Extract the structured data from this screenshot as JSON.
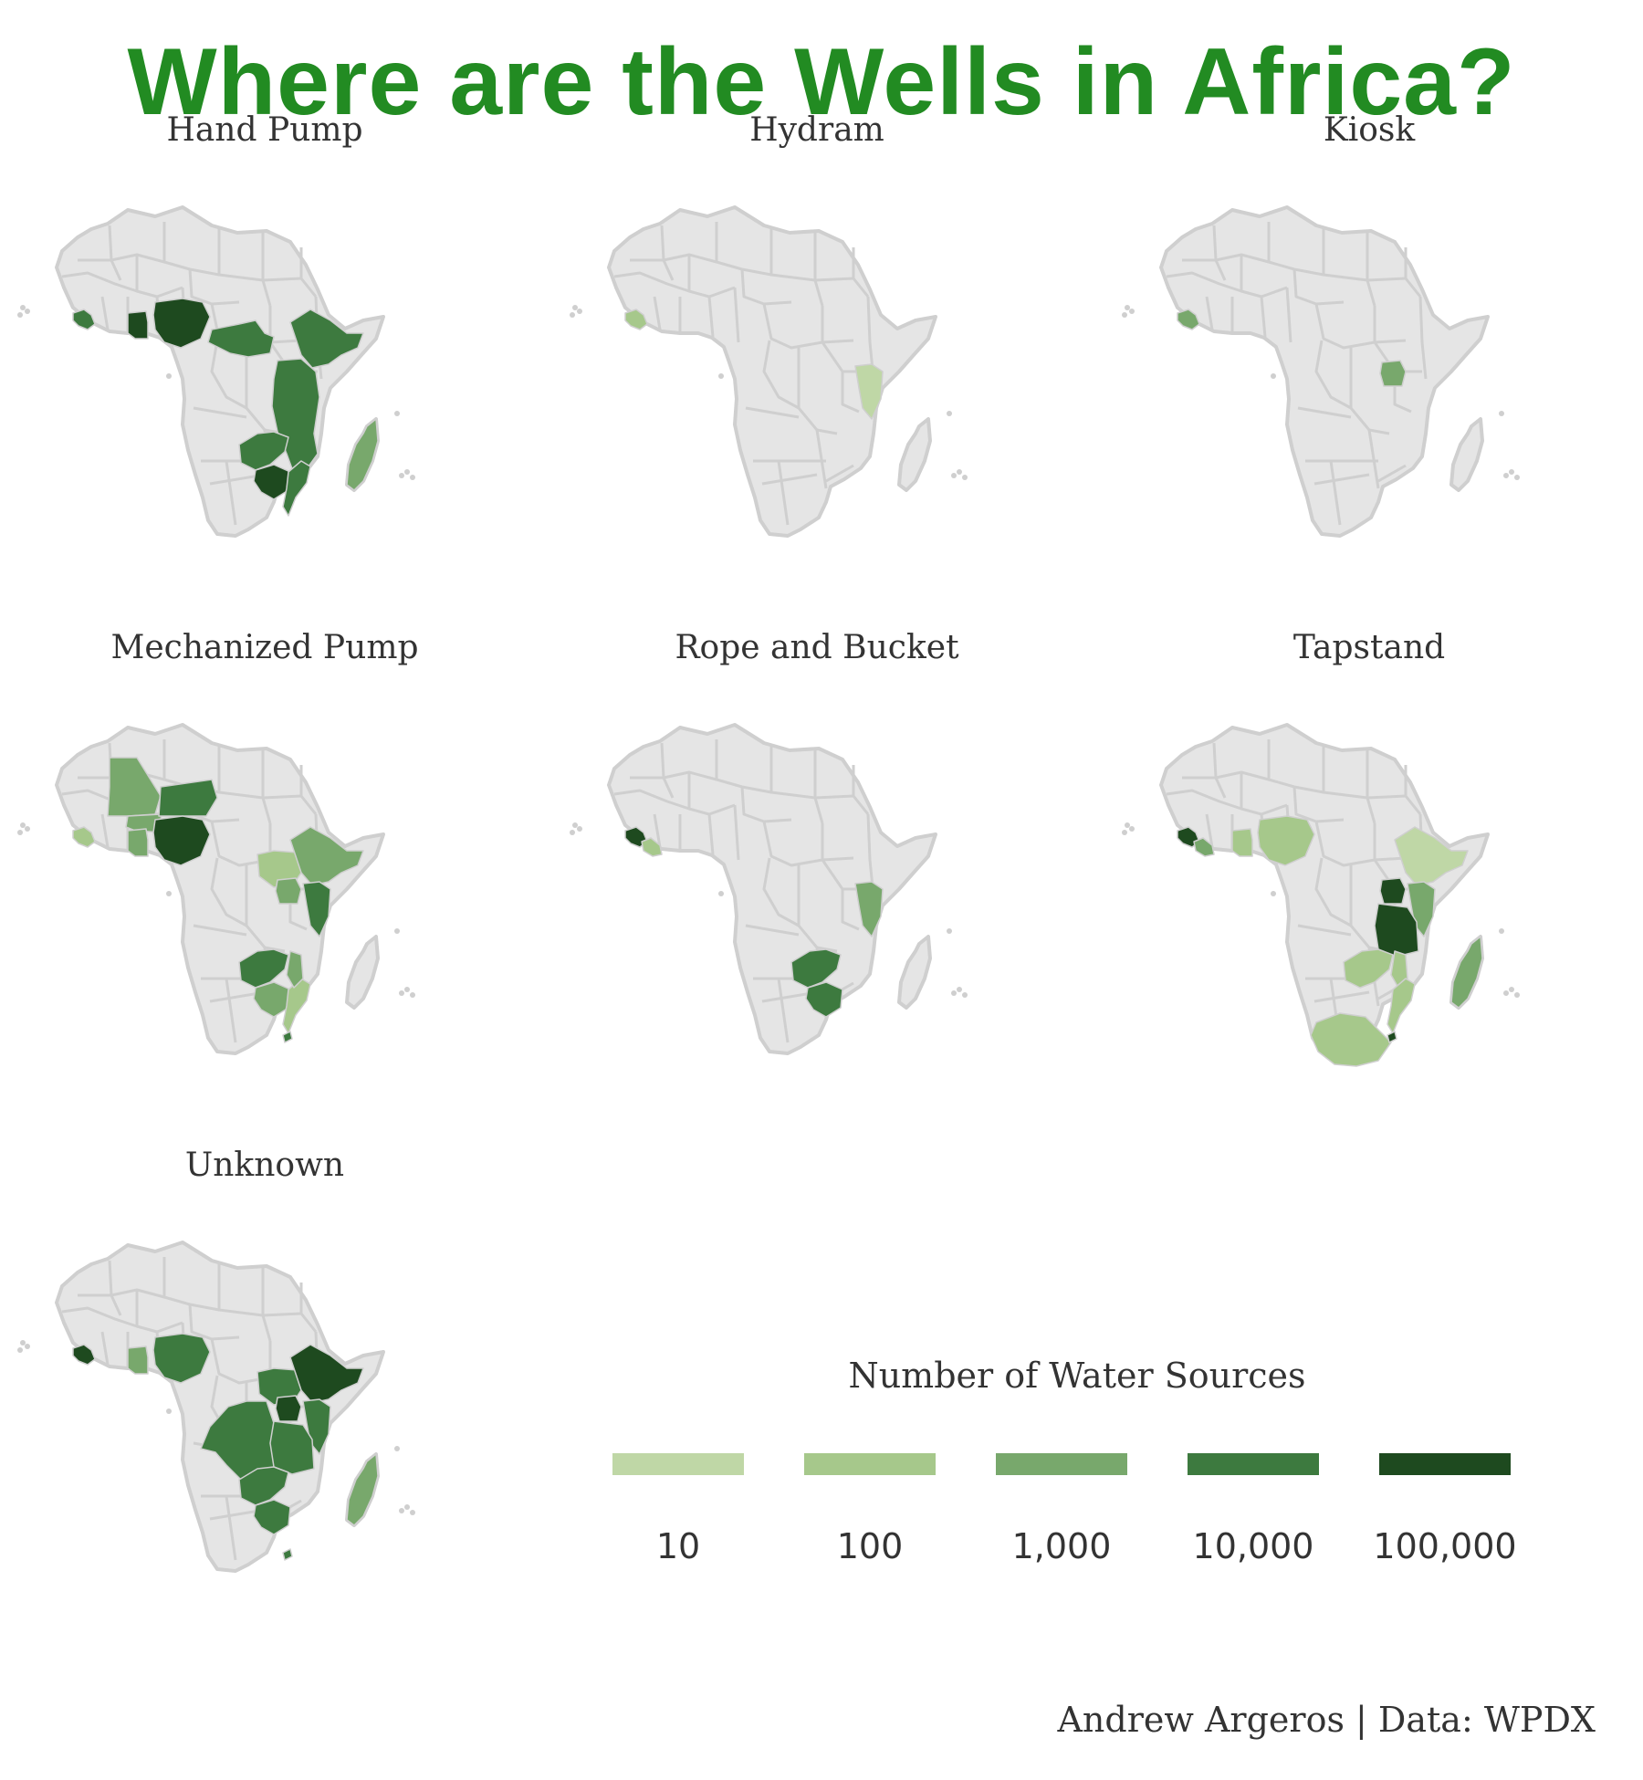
{
  "title": "Where are the Wells in Africa?",
  "panels": [
    {
      "label": "Hand Pump",
      "regions": [
        {
          "name": "Sierra Leone",
          "level": 4
        },
        {
          "name": "Ghana",
          "level": 5
        },
        {
          "name": "Nigeria",
          "level": 5
        },
        {
          "name": "Central Sahel Band",
          "level": 4
        },
        {
          "name": "Ethiopia",
          "level": 4
        },
        {
          "name": "East Africa Corridor",
          "level": 4
        },
        {
          "name": "Zambia",
          "level": 4
        },
        {
          "name": "Zimbabwe",
          "level": 5
        },
        {
          "name": "Mozambique",
          "level": 4
        },
        {
          "name": "Madagascar",
          "level": 3
        }
      ]
    },
    {
      "label": "Hydram",
      "regions": [
        {
          "name": "Sierra Leone",
          "level": 2
        },
        {
          "name": "Kenya",
          "level": 1
        }
      ]
    },
    {
      "label": "Kiosk",
      "regions": [
        {
          "name": "Sierra Leone",
          "level": 3
        },
        {
          "name": "Uganda",
          "level": 3
        }
      ]
    },
    {
      "label": "Mechanized Pump",
      "regions": [
        {
          "name": "Mali",
          "level": 3
        },
        {
          "name": "Burkina Faso",
          "level": 3
        },
        {
          "name": "Niger",
          "level": 4
        },
        {
          "name": "Nigeria",
          "level": 5
        },
        {
          "name": "Sierra Leone",
          "level": 2
        },
        {
          "name": "Ghana",
          "level": 3
        },
        {
          "name": "South Sudan",
          "level": 2
        },
        {
          "name": "Ethiopia",
          "level": 3
        },
        {
          "name": "Uganda",
          "level": 3
        },
        {
          "name": "Kenya",
          "level": 4
        },
        {
          "name": "Zambia",
          "level": 4
        },
        {
          "name": "Zimbabwe",
          "level": 3
        },
        {
          "name": "Mozambique",
          "level": 2
        },
        {
          "name": "Malawi",
          "level": 3
        },
        {
          "name": "Eswatini",
          "level": 4
        }
      ]
    },
    {
      "label": "Rope and Bucket",
      "regions": [
        {
          "name": "Sierra Leone",
          "level": 5
        },
        {
          "name": "Liberia",
          "level": 2
        },
        {
          "name": "Kenya",
          "level": 3
        },
        {
          "name": "Zambia",
          "level": 4
        },
        {
          "name": "Zimbabwe",
          "level": 4
        }
      ]
    },
    {
      "label": "Tapstand",
      "regions": [
        {
          "name": "Sierra Leone",
          "level": 5
        },
        {
          "name": "Liberia",
          "level": 3
        },
        {
          "name": "Ghana",
          "level": 2
        },
        {
          "name": "Nigeria",
          "level": 2
        },
        {
          "name": "Ethiopia",
          "level": 1
        },
        {
          "name": "Uganda",
          "level": 5
        },
        {
          "name": "Kenya",
          "level": 3
        },
        {
          "name": "Tanzania",
          "level": 5
        },
        {
          "name": "Zambia",
          "level": 2
        },
        {
          "name": "Malawi",
          "level": 2
        },
        {
          "name": "Mozambique",
          "level": 2
        },
        {
          "name": "South Africa",
          "level": 2
        },
        {
          "name": "Eswatini",
          "level": 5
        },
        {
          "name": "Madagascar",
          "level": 3
        }
      ]
    },
    {
      "label": "Unknown",
      "regions": [
        {
          "name": "Sierra Leone",
          "level": 5
        },
        {
          "name": "Ghana",
          "level": 3
        },
        {
          "name": "Nigeria",
          "level": 4
        },
        {
          "name": "DR Congo",
          "level": 4
        },
        {
          "name": "South Sudan",
          "level": 4
        },
        {
          "name": "Uganda",
          "level": 5
        },
        {
          "name": "Ethiopia",
          "level": 5
        },
        {
          "name": "Kenya",
          "level": 4
        },
        {
          "name": "Tanzania",
          "level": 4
        },
        {
          "name": "Zambia",
          "level": 4
        },
        {
          "name": "Zimbabwe",
          "level": 4
        },
        {
          "name": "Eswatini",
          "level": 4
        },
        {
          "name": "Madagascar",
          "level": 3
        }
      ]
    }
  ],
  "legend": {
    "title": "Number of Water Sources",
    "items": [
      {
        "label": "10",
        "level": 1
      },
      {
        "label": "100",
        "level": 2
      },
      {
        "label": "1,000",
        "level": 3
      },
      {
        "label": "10,000",
        "level": 4
      },
      {
        "label": "100,000",
        "level": 5
      }
    ]
  },
  "colors": {
    "title": "#228b22",
    "land": "#e5e5e5",
    "border": "#cfcfcf",
    "text": "#333333",
    "scale": [
      "#e5e5e5",
      "#bfd7a6",
      "#a6c88b",
      "#78a86c",
      "#3d7a3f",
      "#1e4a1f"
    ]
  },
  "caption": "Andrew Argeros | Data: WPDX"
}
